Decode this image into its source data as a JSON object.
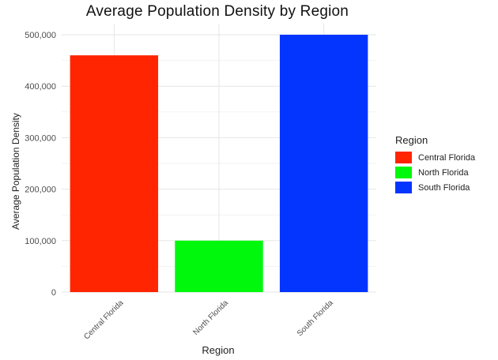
{
  "chart_data": {
    "type": "bar",
    "title": "Average Population Density by Region",
    "xlabel": "Region",
    "ylabel": "Average Population Density",
    "categories": [
      "Central Florida",
      "North Florida",
      "South Florida"
    ],
    "values": [
      460000,
      100000,
      500000
    ],
    "colors": [
      "#FF2500",
      "#00F80D",
      "#0335FF"
    ],
    "ylim": [
      0,
      500000
    ],
    "yticks": [
      0,
      100000,
      200000,
      300000,
      400000,
      500000
    ],
    "ytick_labels": [
      "0",
      "100,000",
      "200,000",
      "300,000",
      "400,000",
      "500,000"
    ],
    "grid": true,
    "legend": {
      "title": "Region",
      "position": "right",
      "items": [
        "Central Florida",
        "North Florida",
        "South Florida"
      ]
    }
  }
}
